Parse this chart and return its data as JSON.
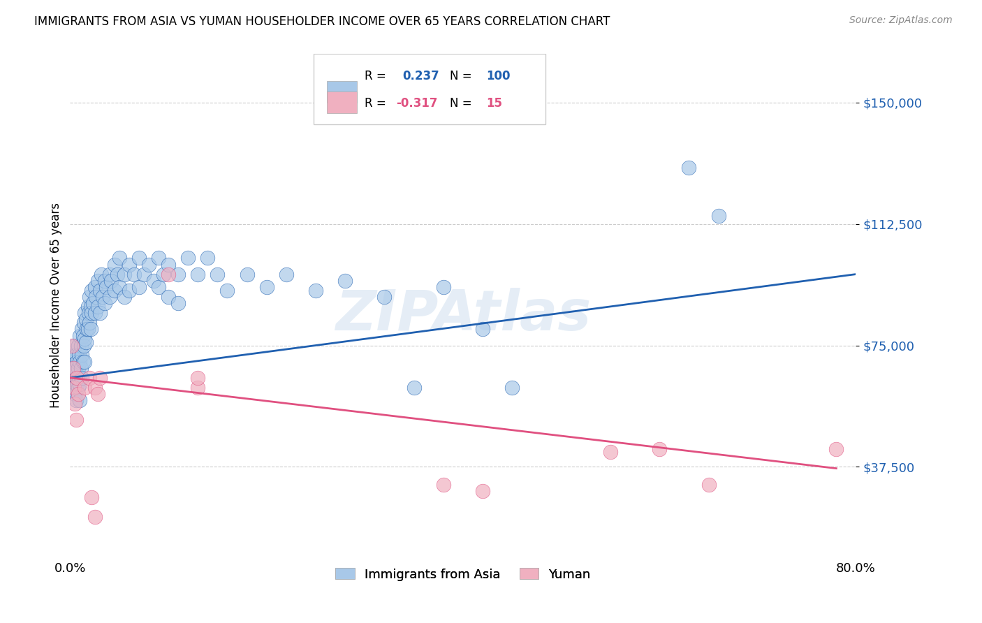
{
  "title": "IMMIGRANTS FROM ASIA VS YUMAN HOUSEHOLDER INCOME OVER 65 YEARS CORRELATION CHART",
  "source": "Source: ZipAtlas.com",
  "ylabel": "Householder Income Over 65 years",
  "ytick_values": [
    37500,
    75000,
    112500,
    150000
  ],
  "ylim": [
    10000,
    165000
  ],
  "xlim": [
    0.0,
    0.8
  ],
  "blue_color": "#a8c8e8",
  "pink_color": "#f0b0c0",
  "blue_line_color": "#2060b0",
  "pink_line_color": "#e05080",
  "background_color": "#ffffff",
  "grid_color": "#cccccc",
  "blue_scatter": [
    [
      0.002,
      68000
    ],
    [
      0.003,
      62000
    ],
    [
      0.004,
      72000
    ],
    [
      0.004,
      65000
    ],
    [
      0.005,
      75000
    ],
    [
      0.005,
      68000
    ],
    [
      0.005,
      60000
    ],
    [
      0.006,
      72000
    ],
    [
      0.006,
      65000
    ],
    [
      0.006,
      58000
    ],
    [
      0.007,
      70000
    ],
    [
      0.007,
      63000
    ],
    [
      0.008,
      75000
    ],
    [
      0.008,
      68000
    ],
    [
      0.008,
      62000
    ],
    [
      0.009,
      72000
    ],
    [
      0.009,
      65000
    ],
    [
      0.01,
      78000
    ],
    [
      0.01,
      70000
    ],
    [
      0.01,
      63000
    ],
    [
      0.01,
      58000
    ],
    [
      0.011,
      75000
    ],
    [
      0.011,
      68000
    ],
    [
      0.012,
      80000
    ],
    [
      0.012,
      72000
    ],
    [
      0.012,
      65000
    ],
    [
      0.013,
      78000
    ],
    [
      0.013,
      70000
    ],
    [
      0.014,
      82000
    ],
    [
      0.014,
      75000
    ],
    [
      0.015,
      85000
    ],
    [
      0.015,
      77000
    ],
    [
      0.015,
      70000
    ],
    [
      0.016,
      83000
    ],
    [
      0.016,
      76000
    ],
    [
      0.017,
      80000
    ],
    [
      0.018,
      87000
    ],
    [
      0.018,
      80000
    ],
    [
      0.019,
      85000
    ],
    [
      0.02,
      90000
    ],
    [
      0.02,
      82000
    ],
    [
      0.021,
      87000
    ],
    [
      0.021,
      80000
    ],
    [
      0.022,
      92000
    ],
    [
      0.022,
      85000
    ],
    [
      0.023,
      88000
    ],
    [
      0.025,
      93000
    ],
    [
      0.025,
      85000
    ],
    [
      0.026,
      90000
    ],
    [
      0.028,
      95000
    ],
    [
      0.028,
      87000
    ],
    [
      0.03,
      92000
    ],
    [
      0.03,
      85000
    ],
    [
      0.032,
      97000
    ],
    [
      0.033,
      90000
    ],
    [
      0.035,
      95000
    ],
    [
      0.035,
      88000
    ],
    [
      0.037,
      93000
    ],
    [
      0.04,
      97000
    ],
    [
      0.04,
      90000
    ],
    [
      0.042,
      95000
    ],
    [
      0.045,
      100000
    ],
    [
      0.045,
      92000
    ],
    [
      0.048,
      97000
    ],
    [
      0.05,
      102000
    ],
    [
      0.05,
      93000
    ],
    [
      0.055,
      97000
    ],
    [
      0.055,
      90000
    ],
    [
      0.06,
      100000
    ],
    [
      0.06,
      92000
    ],
    [
      0.065,
      97000
    ],
    [
      0.07,
      102000
    ],
    [
      0.07,
      93000
    ],
    [
      0.075,
      97000
    ],
    [
      0.08,
      100000
    ],
    [
      0.085,
      95000
    ],
    [
      0.09,
      102000
    ],
    [
      0.09,
      93000
    ],
    [
      0.095,
      97000
    ],
    [
      0.1,
      100000
    ],
    [
      0.1,
      90000
    ],
    [
      0.11,
      97000
    ],
    [
      0.11,
      88000
    ],
    [
      0.12,
      102000
    ],
    [
      0.13,
      97000
    ],
    [
      0.14,
      102000
    ],
    [
      0.15,
      97000
    ],
    [
      0.16,
      92000
    ],
    [
      0.18,
      97000
    ],
    [
      0.2,
      93000
    ],
    [
      0.22,
      97000
    ],
    [
      0.25,
      92000
    ],
    [
      0.28,
      95000
    ],
    [
      0.32,
      90000
    ],
    [
      0.35,
      62000
    ],
    [
      0.38,
      93000
    ],
    [
      0.42,
      80000
    ],
    [
      0.45,
      62000
    ],
    [
      0.63,
      130000
    ],
    [
      0.66,
      115000
    ]
  ],
  "pink_scatter": [
    [
      0.002,
      75000
    ],
    [
      0.003,
      68000
    ],
    [
      0.004,
      62000
    ],
    [
      0.005,
      57000
    ],
    [
      0.006,
      52000
    ],
    [
      0.007,
      65000
    ],
    [
      0.008,
      60000
    ],
    [
      0.015,
      62000
    ],
    [
      0.02,
      65000
    ],
    [
      0.025,
      62000
    ],
    [
      0.028,
      60000
    ],
    [
      0.03,
      65000
    ],
    [
      0.1,
      97000
    ],
    [
      0.13,
      62000
    ],
    [
      0.13,
      65000
    ],
    [
      0.38,
      32000
    ],
    [
      0.42,
      30000
    ],
    [
      0.55,
      42000
    ],
    [
      0.6,
      43000
    ],
    [
      0.65,
      32000
    ],
    [
      0.022,
      28000
    ],
    [
      0.025,
      22000
    ],
    [
      0.78,
      43000
    ]
  ]
}
